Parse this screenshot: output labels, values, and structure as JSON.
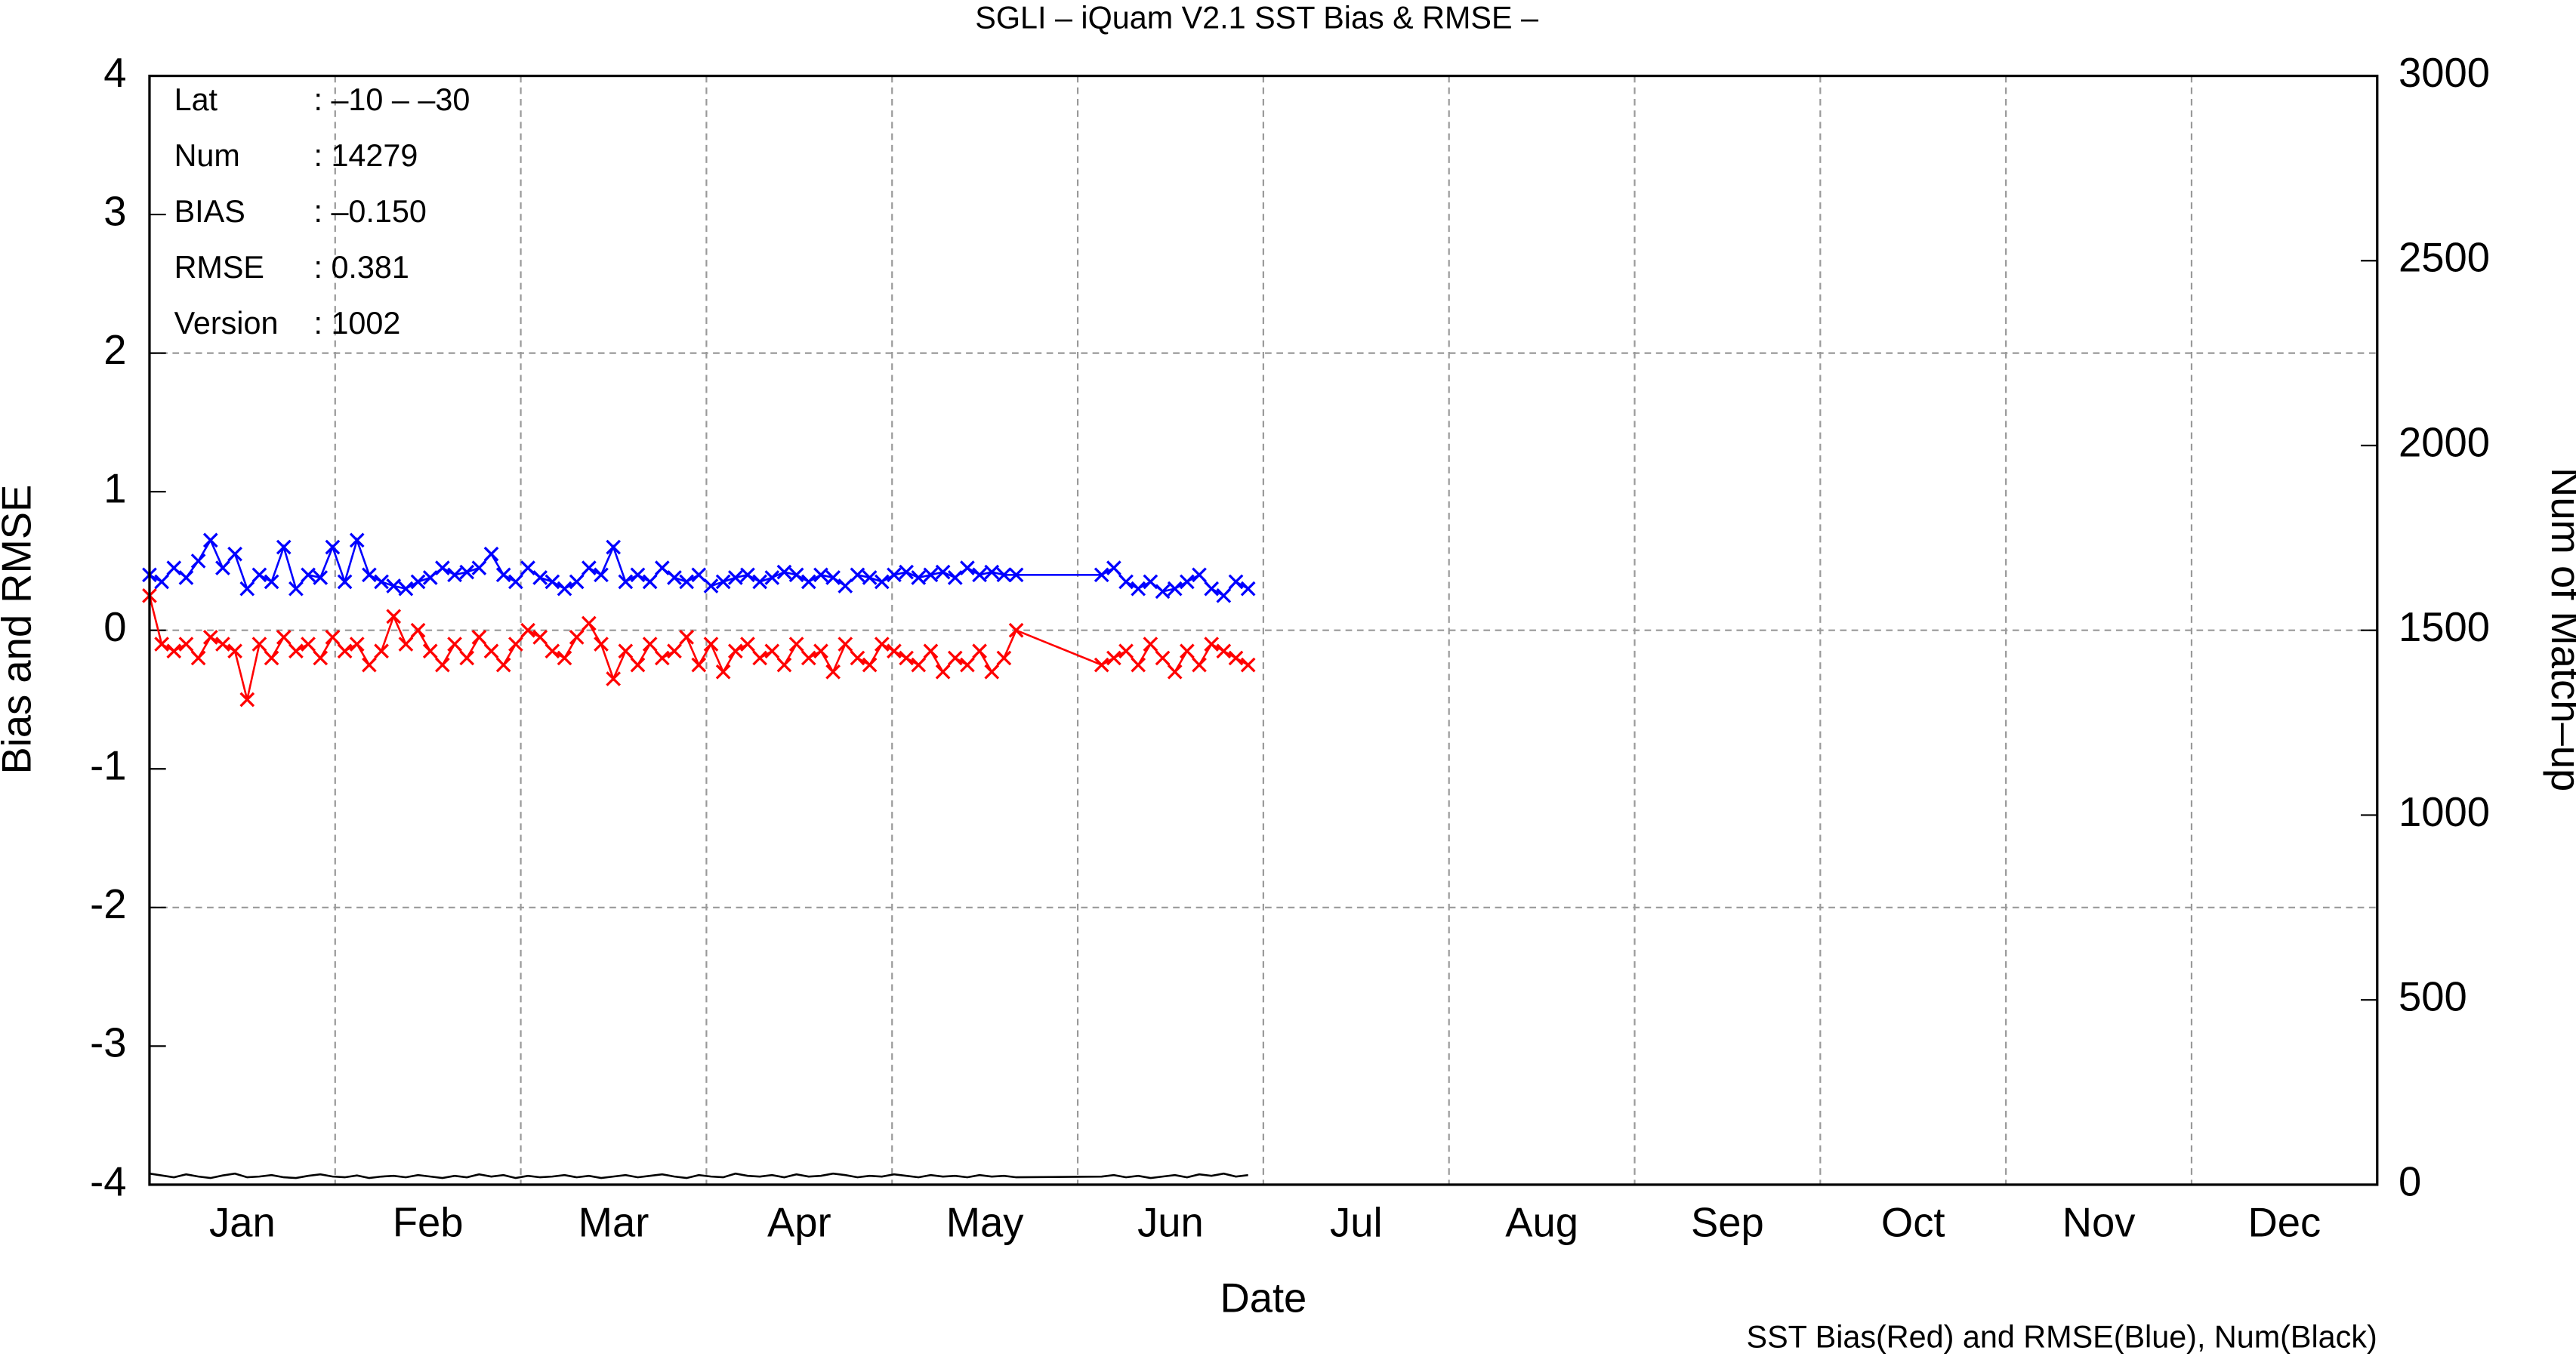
{
  "chart_data": {
    "type": "line",
    "title": "SGLI – iQuam V2.1 SST Bias & RMSE  –",
    "xlabel": "Date",
    "ylabel": "Bias and RMSE",
    "y2label": "Num of Match–up",
    "footnote": "SST Bias(Red) and RMSE(Blue), Num(Black)",
    "stats": [
      {
        "label": "Lat",
        "value": ": –10 – –30"
      },
      {
        "label": "Num",
        "value": ": 14279"
      },
      {
        "label": "BIAS",
        "value": ": –0.150"
      },
      {
        "label": "RMSE",
        "value": ": 0.381"
      },
      {
        "label": "Version",
        "value": ": 1002"
      }
    ],
    "categories": [
      "Jan",
      "Feb",
      "Mar",
      "Apr",
      "May",
      "Jun",
      "Jul",
      "Aug",
      "Sep",
      "Oct",
      "Nov",
      "Dec"
    ],
    "xlim": [
      1,
      366
    ],
    "ylim": [
      -4,
      4
    ],
    "yticks": [
      -4,
      -3,
      -2,
      -1,
      0,
      1,
      2,
      3,
      4
    ],
    "y2lim": [
      0,
      3000
    ],
    "y2ticks": [
      0,
      500,
      1000,
      1500,
      2000,
      2500,
      3000
    ],
    "grid_y": [
      -2,
      0,
      2
    ],
    "x": [
      1,
      3,
      5,
      7,
      9,
      11,
      13,
      15,
      17,
      19,
      21,
      23,
      25,
      27,
      29,
      31,
      33,
      35,
      37,
      39,
      41,
      43,
      45,
      47,
      49,
      51,
      53,
      55,
      57,
      59,
      61,
      63,
      65,
      67,
      69,
      71,
      73,
      75,
      77,
      79,
      81,
      83,
      85,
      87,
      89,
      91,
      93,
      95,
      97,
      99,
      101,
      103,
      105,
      107,
      109,
      111,
      113,
      115,
      117,
      119,
      121,
      123,
      125,
      127,
      129,
      131,
      133,
      135,
      137,
      139,
      141,
      143,
      157,
      159,
      161,
      163,
      165,
      167,
      169,
      171,
      173,
      175,
      177,
      179,
      181
    ],
    "series": [
      {
        "name": "Bias",
        "color": "#ff0000",
        "marker": true,
        "values": [
          0.25,
          -0.1,
          -0.15,
          -0.1,
          -0.2,
          -0.05,
          -0.1,
          -0.15,
          -0.5,
          -0.1,
          -0.2,
          -0.05,
          -0.15,
          -0.1,
          -0.2,
          -0.05,
          -0.15,
          -0.1,
          -0.25,
          -0.15,
          0.1,
          -0.1,
          0.0,
          -0.15,
          -0.25,
          -0.1,
          -0.2,
          -0.05,
          -0.15,
          -0.25,
          -0.1,
          0.0,
          -0.05,
          -0.15,
          -0.2,
          -0.05,
          0.05,
          -0.1,
          -0.35,
          -0.15,
          -0.25,
          -0.1,
          -0.2,
          -0.15,
          -0.05,
          -0.25,
          -0.1,
          -0.3,
          -0.15,
          -0.1,
          -0.2,
          -0.15,
          -0.25,
          -0.1,
          -0.2,
          -0.15,
          -0.3,
          -0.1,
          -0.2,
          -0.25,
          -0.1,
          -0.15,
          -0.2,
          -0.25,
          -0.15,
          -0.3,
          -0.2,
          -0.25,
          -0.15,
          -0.3,
          -0.2,
          0.0,
          -0.25,
          -0.2,
          -0.15,
          -0.25,
          -0.1,
          -0.2,
          -0.3,
          -0.15,
          -0.25,
          -0.1,
          -0.15,
          -0.2,
          -0.25
        ]
      },
      {
        "name": "RMSE",
        "color": "#0000ff",
        "marker": true,
        "values": [
          0.4,
          0.35,
          0.45,
          0.38,
          0.5,
          0.65,
          0.45,
          0.55,
          0.3,
          0.4,
          0.35,
          0.6,
          0.3,
          0.4,
          0.38,
          0.6,
          0.35,
          0.65,
          0.4,
          0.35,
          0.32,
          0.3,
          0.35,
          0.38,
          0.45,
          0.4,
          0.42,
          0.45,
          0.55,
          0.4,
          0.35,
          0.45,
          0.38,
          0.35,
          0.3,
          0.35,
          0.45,
          0.4,
          0.6,
          0.35,
          0.4,
          0.35,
          0.45,
          0.38,
          0.35,
          0.4,
          0.32,
          0.35,
          0.38,
          0.4,
          0.35,
          0.38,
          0.42,
          0.4,
          0.35,
          0.4,
          0.38,
          0.32,
          0.4,
          0.38,
          0.35,
          0.4,
          0.42,
          0.38,
          0.4,
          0.42,
          0.38,
          0.45,
          0.4,
          0.42,
          0.4,
          0.4,
          0.4,
          0.45,
          0.35,
          0.3,
          0.35,
          0.28,
          0.3,
          0.35,
          0.4,
          0.3,
          0.25,
          0.35,
          0.3
        ]
      },
      {
        "name": "Num",
        "color": "#000000",
        "marker": false,
        "axis": "y2",
        "values": [
          30,
          25,
          20,
          28,
          22,
          18,
          25,
          30,
          20,
          22,
          26,
          20,
          18,
          24,
          28,
          22,
          20,
          25,
          18,
          22,
          24,
          20,
          26,
          22,
          18,
          24,
          20,
          28,
          22,
          26,
          18,
          24,
          20,
          22,
          26,
          20,
          24,
          18,
          22,
          26,
          20,
          24,
          28,
          22,
          18,
          26,
          22,
          20,
          30,
          24,
          22,
          26,
          20,
          28,
          22,
          24,
          30,
          26,
          20,
          24,
          22,
          28,
          24,
          20,
          26,
          22,
          24,
          20,
          26,
          22,
          24,
          20,
          22,
          26,
          20,
          24,
          18,
          22,
          26,
          20,
          28,
          24,
          30,
          22,
          26
        ]
      }
    ]
  }
}
